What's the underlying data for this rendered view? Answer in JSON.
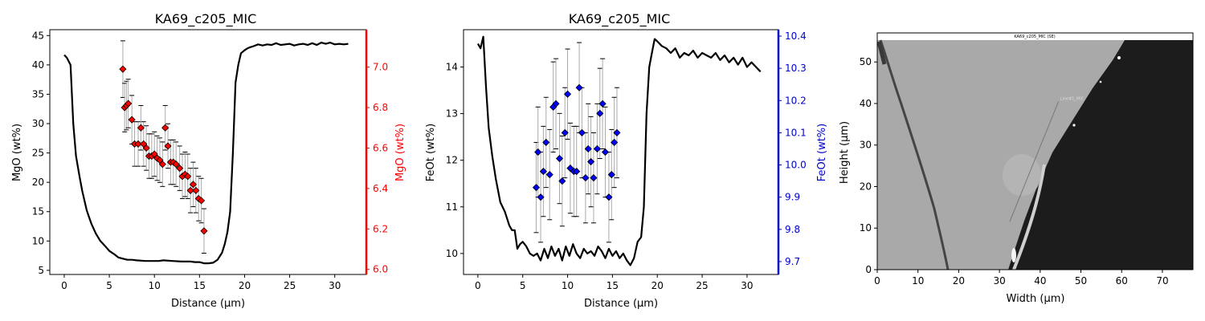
{
  "chart_data": [
    {
      "type": "line+scatter",
      "title": "KA69_c205_MIC",
      "xlabel": "Distance (µm)",
      "ylabel": "MgO (wt%)",
      "ylabel_right": "MgO (wt%)",
      "xlim": [
        -1.6,
        33.5
      ],
      "ylim": [
        4.3,
        46.0
      ],
      "ylim_right": [
        5.975,
        7.185
      ],
      "xticks": [
        0,
        5,
        10,
        15,
        20,
        25,
        30
      ],
      "yticks": [
        5,
        10,
        15,
        20,
        25,
        30,
        35,
        40,
        45
      ],
      "yticks_right": [
        6.0,
        6.2,
        6.4,
        6.6,
        6.8,
        7.0
      ],
      "right_axis_color": "#ff0000",
      "line_color": "#000000",
      "marker_color": "#ff0000",
      "profile": {
        "x": [
          0,
          0.3,
          0.7,
          1.0,
          1.3,
          1.7,
          2.0,
          2.5,
          3.0,
          3.5,
          4.0,
          4.5,
          5.0,
          5.5,
          6.0,
          6.5,
          7.0,
          7.5,
          8.0,
          9.0,
          10.0,
          10.5,
          11.0,
          12.0,
          13.0,
          14.0,
          14.5,
          15.0,
          15.5,
          16.0,
          16.5,
          17.0,
          17.5,
          17.8,
          18.1,
          18.4,
          18.7,
          19.0,
          19.3,
          19.6,
          20.0,
          20.3,
          20.6,
          21.0,
          21.5,
          22.0,
          22.5,
          23.0,
          23.5,
          24.0,
          24.5,
          25.0,
          25.5,
          26.0,
          26.5,
          27.0,
          27.5,
          28.0,
          28.5,
          29.0,
          29.5,
          30.0,
          30.5,
          31.0,
          31.5
        ],
        "values": [
          41.7,
          41.2,
          40.0,
          30.0,
          24.5,
          21.0,
          18.5,
          15.2,
          13.0,
          11.3,
          10.0,
          9.2,
          8.3,
          7.8,
          7.2,
          7.0,
          6.8,
          6.8,
          6.7,
          6.6,
          6.6,
          6.6,
          6.7,
          6.6,
          6.5,
          6.5,
          6.4,
          6.4,
          6.2,
          6.2,
          6.3,
          6.8,
          8.0,
          9.5,
          11.5,
          15.0,
          25.0,
          37.0,
          40.0,
          42.0,
          42.5,
          42.8,
          43.0,
          43.2,
          43.5,
          43.3,
          43.5,
          43.4,
          43.7,
          43.4,
          43.5,
          43.6,
          43.3,
          43.5,
          43.6,
          43.4,
          43.7,
          43.4,
          43.8,
          43.6,
          43.8,
          43.5,
          43.6,
          43.5,
          43.6
        ]
      },
      "points": {
        "x": [
          6.5,
          6.7,
          6.9,
          7.1,
          7.5,
          7.8,
          8.2,
          8.5,
          8.8,
          9.1,
          9.4,
          9.7,
          10.0,
          10.3,
          10.6,
          10.9,
          11.2,
          11.5,
          11.8,
          12.1,
          12.4,
          12.8,
          13.1,
          13.4,
          13.7,
          14.0,
          14.3,
          14.6,
          14.9,
          15.2,
          15.5
        ],
        "values": [
          6.99,
          6.8,
          6.81,
          6.82,
          6.74,
          6.62,
          6.62,
          6.7,
          6.62,
          6.6,
          6.56,
          6.56,
          6.57,
          6.55,
          6.54,
          6.52,
          6.7,
          6.61,
          6.53,
          6.53,
          6.52,
          6.5,
          6.46,
          6.47,
          6.46,
          6.39,
          6.42,
          6.39,
          6.35,
          6.34,
          6.19
        ],
        "errors": [
          0.14,
          0.12,
          0.12,
          0.12,
          0.12,
          0.11,
          0.11,
          0.11,
          0.11,
          0.11,
          0.11,
          0.11,
          0.11,
          0.11,
          0.11,
          0.11,
          0.11,
          0.11,
          0.11,
          0.11,
          0.11,
          0.11,
          0.11,
          0.11,
          0.11,
          0.11,
          0.11,
          0.11,
          0.11,
          0.11,
          0.11
        ]
      }
    },
    {
      "type": "line+scatter",
      "title": "KA69_c205_MIC",
      "xlabel": "Distance (µm)",
      "ylabel": "FeOt (wt%)",
      "ylabel_right": "FeOt (wt%)",
      "xlim": [
        -1.6,
        33.5
      ],
      "ylim": [
        9.55,
        14.8
      ],
      "ylim_right": [
        9.66,
        10.42
      ],
      "xticks": [
        0,
        5,
        10,
        15,
        20,
        25,
        30
      ],
      "yticks": [
        10,
        11,
        12,
        13,
        14
      ],
      "yticks_right": [
        9.7,
        9.8,
        9.9,
        10.0,
        10.1,
        10.2,
        10.3,
        10.4
      ],
      "right_axis_color": "#0000cc",
      "line_color": "#000000",
      "marker_color": "#0000ff",
      "profile": {
        "x": [
          0,
          0.3,
          0.6,
          0.9,
          1.2,
          1.6,
          2.0,
          2.5,
          3.0,
          3.5,
          3.8,
          4.1,
          4.4,
          4.7,
          5.0,
          5.4,
          5.8,
          6.2,
          6.6,
          7.0,
          7.4,
          7.8,
          8.2,
          8.6,
          9.0,
          9.4,
          9.8,
          10.2,
          10.6,
          11.0,
          11.4,
          11.8,
          12.2,
          12.6,
          13.0,
          13.4,
          13.8,
          14.2,
          14.6,
          15.0,
          15.4,
          15.8,
          16.2,
          16.6,
          17.0,
          17.4,
          17.8,
          18.2,
          18.5,
          18.8,
          19.1,
          19.4,
          19.7,
          20.0,
          20.5,
          21.0,
          21.5,
          22.0,
          22.5,
          23.0,
          23.5,
          24.0,
          24.5,
          25.0,
          25.5,
          26.0,
          26.5,
          27.0,
          27.5,
          28.0,
          28.5,
          29.0,
          29.5,
          30.0,
          30.5,
          31.0,
          31.5
        ],
        "values": [
          14.5,
          14.4,
          14.65,
          13.6,
          12.7,
          12.1,
          11.6,
          11.1,
          10.9,
          10.6,
          10.5,
          10.5,
          10.1,
          10.2,
          10.25,
          10.15,
          10.0,
          9.95,
          10.0,
          9.85,
          10.1,
          9.9,
          10.15,
          9.95,
          10.1,
          9.85,
          10.15,
          9.95,
          10.2,
          10.0,
          9.9,
          10.1,
          10.0,
          10.05,
          9.95,
          10.15,
          10.05,
          9.9,
          10.1,
          9.95,
          10.05,
          9.9,
          10.0,
          9.85,
          9.75,
          9.9,
          10.25,
          10.35,
          11.0,
          13.0,
          14.0,
          14.3,
          14.6,
          14.55,
          14.45,
          14.4,
          14.3,
          14.4,
          14.2,
          14.3,
          14.25,
          14.35,
          14.2,
          14.3,
          14.25,
          14.2,
          14.3,
          14.15,
          14.25,
          14.1,
          14.2,
          14.05,
          14.2,
          14.0,
          14.1,
          14.0,
          13.9
        ]
      },
      "points": {
        "x": [
          6.5,
          6.7,
          7.0,
          7.3,
          7.6,
          8.0,
          8.4,
          8.7,
          9.1,
          9.4,
          9.7,
          10.0,
          10.3,
          10.7,
          11.0,
          11.3,
          11.6,
          12.0,
          12.3,
          12.6,
          12.9,
          13.3,
          13.6,
          13.9,
          14.2,
          14.6,
          14.9,
          15.2,
          15.5
        ],
        "values": [
          9.93,
          10.04,
          9.9,
          9.98,
          10.07,
          9.97,
          10.18,
          10.19,
          10.02,
          9.95,
          10.1,
          10.22,
          9.99,
          9.98,
          9.98,
          10.24,
          10.1,
          9.96,
          10.05,
          10.01,
          9.96,
          10.05,
          10.16,
          10.19,
          10.04,
          9.9,
          9.97,
          10.07,
          10.1
        ],
        "errors": [
          0.14,
          0.14,
          0.14,
          0.14,
          0.14,
          0.14,
          0.14,
          0.14,
          0.14,
          0.14,
          0.14,
          0.14,
          0.14,
          0.14,
          0.14,
          0.14,
          0.14,
          0.14,
          0.14,
          0.14,
          0.14,
          0.14,
          0.14,
          0.14,
          0.14,
          0.14,
          0.14,
          0.14,
          0.14
        ]
      }
    },
    {
      "type": "image",
      "title": "",
      "xlabel": "Width (µm)",
      "ylabel": "Height (µm)",
      "xlim": [
        0,
        77.5
      ],
      "ylim": [
        0,
        57
      ],
      "xticks": [
        0,
        10,
        20,
        30,
        40,
        50,
        60,
        70
      ],
      "yticks": [
        0,
        10,
        20,
        30,
        40,
        50
      ],
      "image_caption": "KA69_c205_MIC (SE)",
      "transect_label": "Line#1_MIC",
      "transect": {
        "x": [
          32.5,
          44.5
        ],
        "y": [
          11.5,
          40.5
        ]
      }
    }
  ]
}
